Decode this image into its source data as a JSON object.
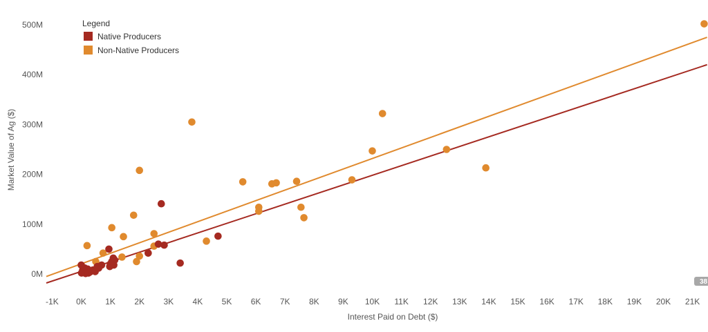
{
  "chart_data": {
    "type": "scatter",
    "title": "",
    "xlabel": "Interest Paid on Debt ($)",
    "ylabel": "Market Value of Ag ($)",
    "xlim": [
      -1500,
      21500
    ],
    "ylim": [
      -20000000,
      520000000
    ],
    "x_ticks": [
      -1000,
      0,
      1000,
      2000,
      3000,
      4000,
      5000,
      6000,
      7000,
      8000,
      9000,
      10000,
      11000,
      12000,
      13000,
      14000,
      15000,
      16000,
      17000,
      18000,
      19000,
      20000,
      21000
    ],
    "x_tick_labels": [
      "-1K",
      "0K",
      "1K",
      "2K",
      "3K",
      "4K",
      "5K",
      "6K",
      "7K",
      "8K",
      "9K",
      "10K",
      "11K",
      "12K",
      "13K",
      "14K",
      "15K",
      "16K",
      "17K",
      "18K",
      "19K",
      "20K",
      "21K"
    ],
    "y_ticks": [
      0,
      100000000,
      200000000,
      300000000,
      400000000,
      500000000
    ],
    "y_tick_labels": [
      "0M",
      "100M",
      "200M",
      "300M",
      "400M",
      "500M"
    ],
    "grid": false,
    "legend": {
      "title": "Legend",
      "position": "top-left"
    },
    "badge": "38",
    "series": [
      {
        "name": "Native Producers",
        "color": "#a52a21",
        "trend": {
          "x": [
            -1200,
            21500
          ],
          "y": [
            -18000000,
            420000000
          ]
        },
        "points": [
          [
            0,
            18000000
          ],
          [
            10,
            2000000
          ],
          [
            50,
            8000000
          ],
          [
            80,
            3000000
          ],
          [
            120,
            12000000
          ],
          [
            150,
            1000000
          ],
          [
            200,
            5000000
          ],
          [
            220,
            10000000
          ],
          [
            250,
            2000000
          ],
          [
            300,
            4000000
          ],
          [
            350,
            6000000
          ],
          [
            400,
            8000000
          ],
          [
            480,
            5000000
          ],
          [
            550,
            15000000
          ],
          [
            600,
            12000000
          ],
          [
            700,
            18000000
          ],
          [
            950,
            50000000
          ],
          [
            980,
            15000000
          ],
          [
            1000,
            20000000
          ],
          [
            1050,
            25000000
          ],
          [
            1100,
            32000000
          ],
          [
            1150,
            28000000
          ],
          [
            1120,
            18000000
          ],
          [
            2300,
            42000000
          ],
          [
            2650,
            60000000
          ],
          [
            2750,
            141000000
          ],
          [
            2850,
            58000000
          ],
          [
            3400,
            22000000
          ],
          [
            4700,
            76000000
          ]
        ]
      },
      {
        "name": "Non-Native Producers",
        "color": "#e08a2e",
        "trend": {
          "x": [
            -1200,
            21500
          ],
          "y": [
            -5000000,
            475000000
          ]
        },
        "points": [
          [
            200,
            57000000
          ],
          [
            500,
            25000000
          ],
          [
            750,
            42000000
          ],
          [
            1050,
            93000000
          ],
          [
            1400,
            34000000
          ],
          [
            1450,
            75000000
          ],
          [
            1800,
            118000000
          ],
          [
            1900,
            25000000
          ],
          [
            2000,
            208000000
          ],
          [
            2000,
            36000000
          ],
          [
            2300,
            42000000
          ],
          [
            2500,
            81000000
          ],
          [
            2500,
            56000000
          ],
          [
            3800,
            305000000
          ],
          [
            4300,
            66000000
          ],
          [
            5550,
            185000000
          ],
          [
            6100,
            134000000
          ],
          [
            6100,
            126000000
          ],
          [
            6550,
            181000000
          ],
          [
            6700,
            183000000
          ],
          [
            7400,
            186000000
          ],
          [
            7550,
            134000000
          ],
          [
            7650,
            113000000
          ],
          [
            9300,
            189000000
          ],
          [
            10000,
            247000000
          ],
          [
            10350,
            322000000
          ],
          [
            12550,
            250000000
          ],
          [
            13900,
            213000000
          ],
          [
            21400,
            502000000
          ]
        ]
      }
    ]
  }
}
